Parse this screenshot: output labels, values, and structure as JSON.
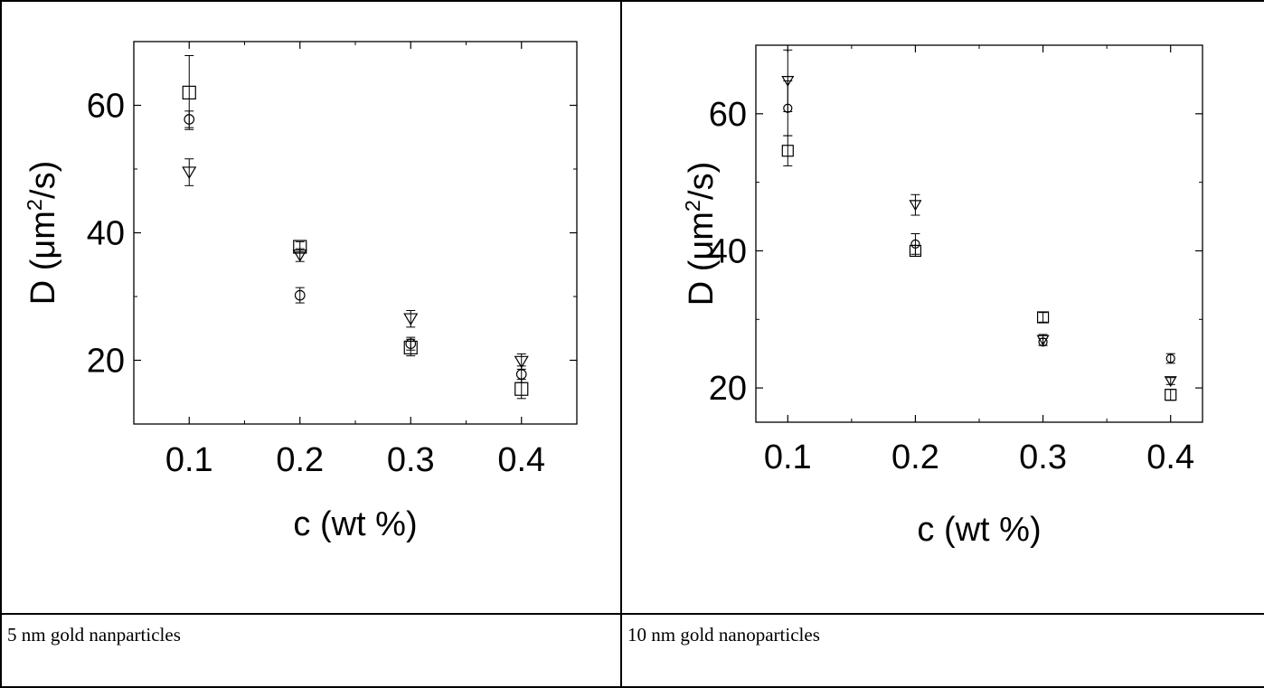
{
  "captions": {
    "left": "5 nm gold nanparticles",
    "right": "10 nm gold nanoparticles"
  },
  "chart_data": [
    {
      "type": "scatter",
      "title": "",
      "xlabel": "c (wt %)",
      "ylabel_prefix": "D (μm",
      "ylabel_sup": "2",
      "ylabel_suffix": "/s)",
      "xlim": [
        0.05,
        0.45
      ],
      "ylim": [
        10,
        70
      ],
      "xticks": [
        0.1,
        0.2,
        0.3,
        0.4
      ],
      "xtick_labels": [
        "0.1",
        "0.2",
        "0.3",
        "0.4"
      ],
      "yticks": [
        20,
        40,
        60
      ],
      "ytick_labels": [
        "20",
        "40",
        "60"
      ],
      "grid": false,
      "legend": "none",
      "series": [
        {
          "marker": "square",
          "points": [
            [
              0.1,
              62.0,
              5.8
            ],
            [
              0.2,
              37.8,
              0.8
            ],
            [
              0.3,
              22.0,
              1.3
            ],
            [
              0.4,
              15.5,
              1.5
            ]
          ]
        },
        {
          "marker": "circle",
          "points": [
            [
              0.1,
              57.8,
              1.3
            ],
            [
              0.2,
              30.2,
              1.2
            ],
            [
              0.3,
              22.6,
              1.0
            ],
            [
              0.4,
              17.8,
              1.3
            ]
          ]
        },
        {
          "marker": "triangle",
          "points": [
            [
              0.1,
              49.5,
              2.1
            ],
            [
              0.2,
              36.5,
              1.0
            ],
            [
              0.3,
              26.5,
              1.3
            ],
            [
              0.4,
              19.8,
              1.2
            ]
          ]
        }
      ]
    },
    {
      "type": "scatter",
      "title": "",
      "xlabel": "c (wt %)",
      "ylabel_prefix": "D (μm",
      "ylabel_sup": "2",
      "ylabel_suffix": "/s)",
      "xlim": [
        0.075,
        0.425
      ],
      "ylim": [
        15,
        70
      ],
      "xticks": [
        0.1,
        0.2,
        0.3,
        0.4
      ],
      "xtick_labels": [
        "0.1",
        "0.2",
        "0.3",
        "0.4"
      ],
      "yticks": [
        20,
        40,
        60
      ],
      "ytick_labels": [
        "20",
        "40",
        "60"
      ],
      "grid": false,
      "legend": "none",
      "series": [
        {
          "marker": "square",
          "points": [
            [
              0.1,
              54.6,
              2.2
            ],
            [
              0.2,
              40.0,
              0.8
            ],
            [
              0.3,
              30.3,
              0.7
            ],
            [
              0.4,
              19.0,
              0.8
            ]
          ]
        },
        {
          "marker": "circle",
          "points": [
            [
              0.1,
              60.8,
              4.0
            ],
            [
              0.2,
              41.0,
              1.5
            ],
            [
              0.3,
              26.7,
              0.5
            ],
            [
              0.4,
              24.3,
              0.7
            ]
          ]
        },
        {
          "marker": "triangle",
          "points": [
            [
              0.1,
              64.8,
              4.5
            ],
            [
              0.2,
              46.7,
              1.5
            ],
            [
              0.3,
              27.0,
              0.8
            ],
            [
              0.4,
              21.0,
              0.5
            ]
          ]
        }
      ]
    }
  ]
}
